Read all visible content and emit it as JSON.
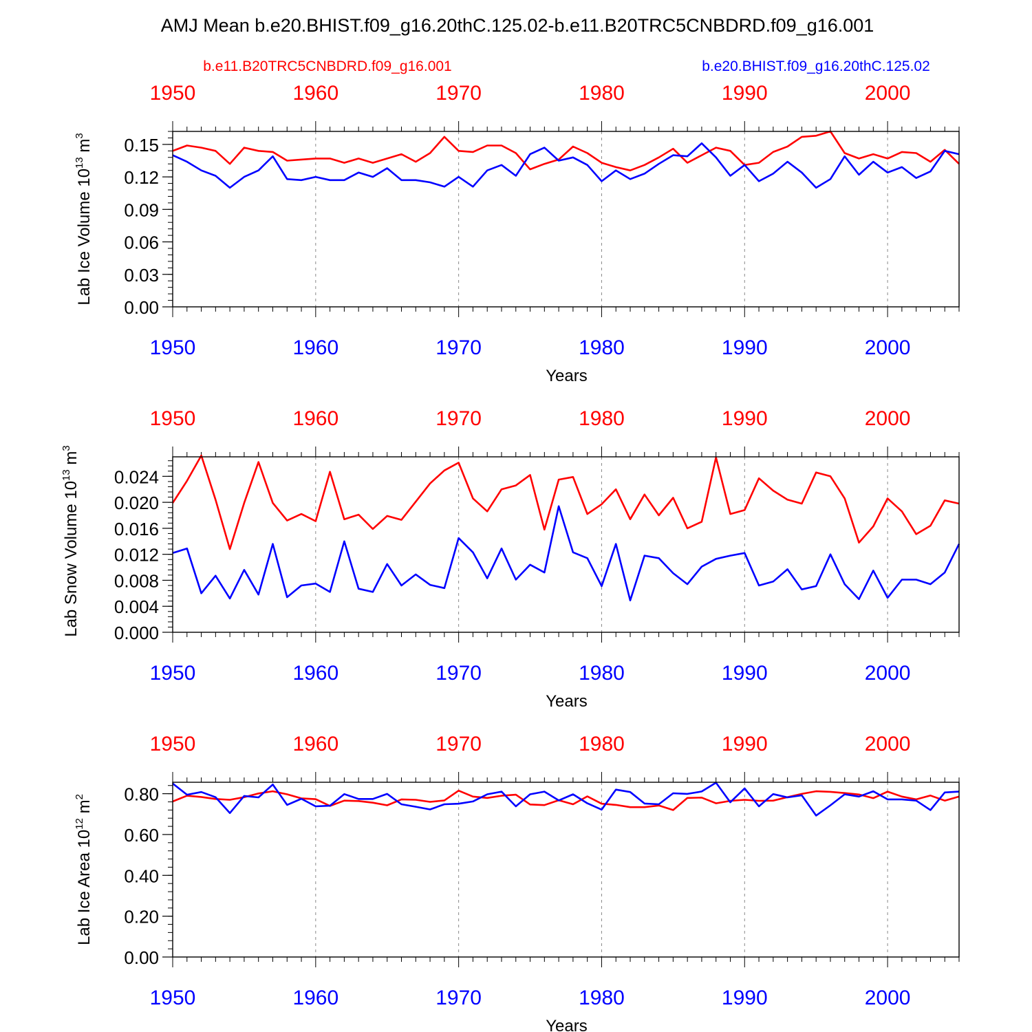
{
  "title": "AMJ Mean b.e20.BHIST.f09_g16.20thC.125.02-b.e11.B20TRC5CNBDRD.f09_g16.001",
  "legend": {
    "left": "b.e11.B20TRC5CNBDRD.f09_g16.001",
    "right": "b.e20.BHIST.f09_g16.20thC.125.02"
  },
  "colors": {
    "red": "#ff0000",
    "blue": "#0000ff",
    "axis": "#000000",
    "grid": "#888888"
  },
  "chart_data": [
    {
      "type": "line",
      "ylabel": "Lab Ice Volume 10",
      "ylabel_exp": "13",
      "ylabel_unit": " m",
      "ylabel_unit_exp": "3",
      "xlabel": "Years",
      "xlim": [
        1950,
        2005
      ],
      "ylim": [
        0,
        0.162
      ],
      "yticks": [
        0.0,
        0.03,
        0.06,
        0.09,
        0.12,
        0.15
      ],
      "ytick_labels": [
        "0.00",
        "0.03",
        "0.06",
        "0.09",
        "0.12",
        "0.15"
      ],
      "xticks": [
        1950,
        1960,
        1970,
        1980,
        1990,
        2000
      ],
      "xtick_labels": [
        "1950",
        "1960",
        "1970",
        "1980",
        "1990",
        "2000"
      ],
      "series": [
        {
          "name": "b.e11.B20TRC5CNBDRD.f09_g16.001",
          "color": "#ff0000",
          "values": [
            0.144,
            0.149,
            0.147,
            0.144,
            0.132,
            0.147,
            0.144,
            0.143,
            0.135,
            0.136,
            0.137,
            0.137,
            0.133,
            0.137,
            0.133,
            0.137,
            0.141,
            0.134,
            0.142,
            0.157,
            0.144,
            0.143,
            0.149,
            0.149,
            0.142,
            0.127,
            0.132,
            0.136,
            0.148,
            0.142,
            0.133,
            0.129,
            0.126,
            0.131,
            0.138,
            0.146,
            0.133,
            0.14,
            0.147,
            0.144,
            0.131,
            0.133,
            0.143,
            0.148,
            0.157,
            0.158,
            0.162,
            0.142,
            0.137,
            0.141,
            0.137,
            0.143,
            0.142,
            0.134,
            0.145,
            0.132
          ]
        },
        {
          "name": "b.e20.BHIST.f09_g16.20thC.125.02",
          "color": "#0000ff",
          "values": [
            0.14,
            0.134,
            0.126,
            0.121,
            0.11,
            0.12,
            0.126,
            0.139,
            0.118,
            0.117,
            0.12,
            0.117,
            0.117,
            0.124,
            0.12,
            0.128,
            0.117,
            0.117,
            0.115,
            0.111,
            0.12,
            0.111,
            0.126,
            0.131,
            0.121,
            0.141,
            0.147,
            0.135,
            0.138,
            0.131,
            0.116,
            0.126,
            0.118,
            0.123,
            0.132,
            0.14,
            0.139,
            0.151,
            0.138,
            0.121,
            0.131,
            0.116,
            0.123,
            0.134,
            0.124,
            0.11,
            0.118,
            0.139,
            0.122,
            0.134,
            0.124,
            0.129,
            0.119,
            0.125,
            0.144,
            0.141
          ]
        }
      ]
    },
    {
      "type": "line",
      "ylabel": "Lab Snow Volume 10",
      "ylabel_exp": "13",
      "ylabel_unit": " m",
      "ylabel_unit_exp": "3",
      "xlabel": "Years",
      "xlim": [
        1950,
        2005
      ],
      "ylim": [
        0,
        0.027
      ],
      "yticks": [
        0.0,
        0.004,
        0.008,
        0.012,
        0.016,
        0.02,
        0.024
      ],
      "ytick_labels": [
        "0.000",
        "0.004",
        "0.008",
        "0.012",
        "0.016",
        "0.020",
        "0.024"
      ],
      "xticks": [
        1950,
        1960,
        1970,
        1980,
        1990,
        2000
      ],
      "xtick_labels": [
        "1950",
        "1960",
        "1970",
        "1980",
        "1990",
        "2000"
      ],
      "series": [
        {
          "name": "b.e11.B20TRC5CNBDRD.f09_g16.001",
          "color": "#ff0000",
          "values": [
            0.0199,
            0.0233,
            0.0272,
            0.0204,
            0.0128,
            0.0199,
            0.0262,
            0.0199,
            0.0172,
            0.0182,
            0.0171,
            0.0247,
            0.0174,
            0.0181,
            0.0159,
            0.0179,
            0.0173,
            0.0201,
            0.0229,
            0.0249,
            0.0261,
            0.0206,
            0.0186,
            0.022,
            0.0226,
            0.0242,
            0.0158,
            0.0235,
            0.0239,
            0.0182,
            0.0197,
            0.022,
            0.0174,
            0.0212,
            0.018,
            0.0207,
            0.016,
            0.017,
            0.0269,
            0.0182,
            0.0188,
            0.0237,
            0.0218,
            0.0204,
            0.0198,
            0.0246,
            0.024,
            0.0206,
            0.0138,
            0.0163,
            0.0206,
            0.0186,
            0.0151,
            0.0164,
            0.0203,
            0.0198
          ]
        },
        {
          "name": "b.e20.BHIST.f09_g16.20thC.125.02",
          "color": "#0000ff",
          "values": [
            0.0122,
            0.0129,
            0.006,
            0.0087,
            0.0052,
            0.0096,
            0.0058,
            0.0136,
            0.0054,
            0.0072,
            0.0075,
            0.0062,
            0.014,
            0.0067,
            0.0062,
            0.0105,
            0.0072,
            0.0089,
            0.0073,
            0.0068,
            0.0145,
            0.0123,
            0.0083,
            0.0129,
            0.0081,
            0.0104,
            0.0092,
            0.0194,
            0.0123,
            0.0114,
            0.0071,
            0.0136,
            0.0049,
            0.0118,
            0.0114,
            0.0091,
            0.0074,
            0.0101,
            0.0113,
            0.0118,
            0.0122,
            0.0072,
            0.0078,
            0.0097,
            0.0066,
            0.0071,
            0.012,
            0.0074,
            0.0051,
            0.0095,
            0.0053,
            0.0081,
            0.0081,
            0.0074,
            0.0092,
            0.0136
          ]
        }
      ]
    },
    {
      "type": "line",
      "ylabel": "Lab Ice Area 10",
      "ylabel_exp": "12",
      "ylabel_unit": " m",
      "ylabel_unit_exp": "2",
      "xlabel": "Years",
      "xlim": [
        1950,
        2005
      ],
      "ylim": [
        0,
        0.856
      ],
      "yticks": [
        0.0,
        0.2,
        0.4,
        0.6,
        0.8
      ],
      "ytick_labels": [
        "0.00",
        "0.20",
        "0.40",
        "0.60",
        "0.80"
      ],
      "xticks": [
        1950,
        1960,
        1970,
        1980,
        1990,
        2000
      ],
      "xtick_labels": [
        "1950",
        "1960",
        "1970",
        "1980",
        "1990",
        "2000"
      ],
      "series": [
        {
          "name": "b.e11.B20TRC5CNBDRD.f09_g16.001",
          "color": "#ff0000",
          "values": [
            0.762,
            0.79,
            0.784,
            0.774,
            0.77,
            0.783,
            0.801,
            0.812,
            0.797,
            0.777,
            0.773,
            0.74,
            0.766,
            0.764,
            0.756,
            0.743,
            0.772,
            0.77,
            0.76,
            0.767,
            0.815,
            0.786,
            0.779,
            0.79,
            0.795,
            0.747,
            0.744,
            0.768,
            0.748,
            0.787,
            0.751,
            0.745,
            0.734,
            0.734,
            0.742,
            0.72,
            0.779,
            0.781,
            0.753,
            0.765,
            0.77,
            0.765,
            0.766,
            0.783,
            0.799,
            0.812,
            0.809,
            0.803,
            0.796,
            0.778,
            0.81,
            0.786,
            0.772,
            0.791,
            0.766,
            0.786
          ]
        },
        {
          "name": "b.e20.BHIST.f09_g16.20thC.125.02",
          "color": "#0000ff",
          "values": [
            0.85,
            0.795,
            0.808,
            0.783,
            0.705,
            0.789,
            0.782,
            0.845,
            0.745,
            0.775,
            0.738,
            0.741,
            0.798,
            0.774,
            0.774,
            0.799,
            0.748,
            0.736,
            0.723,
            0.748,
            0.751,
            0.762,
            0.797,
            0.81,
            0.738,
            0.797,
            0.81,
            0.767,
            0.797,
            0.753,
            0.722,
            0.82,
            0.808,
            0.752,
            0.748,
            0.802,
            0.799,
            0.811,
            0.854,
            0.758,
            0.826,
            0.738,
            0.798,
            0.782,
            0.792,
            0.693,
            0.743,
            0.797,
            0.786,
            0.812,
            0.772,
            0.772,
            0.766,
            0.72,
            0.806,
            0.81
          ]
        }
      ]
    }
  ]
}
